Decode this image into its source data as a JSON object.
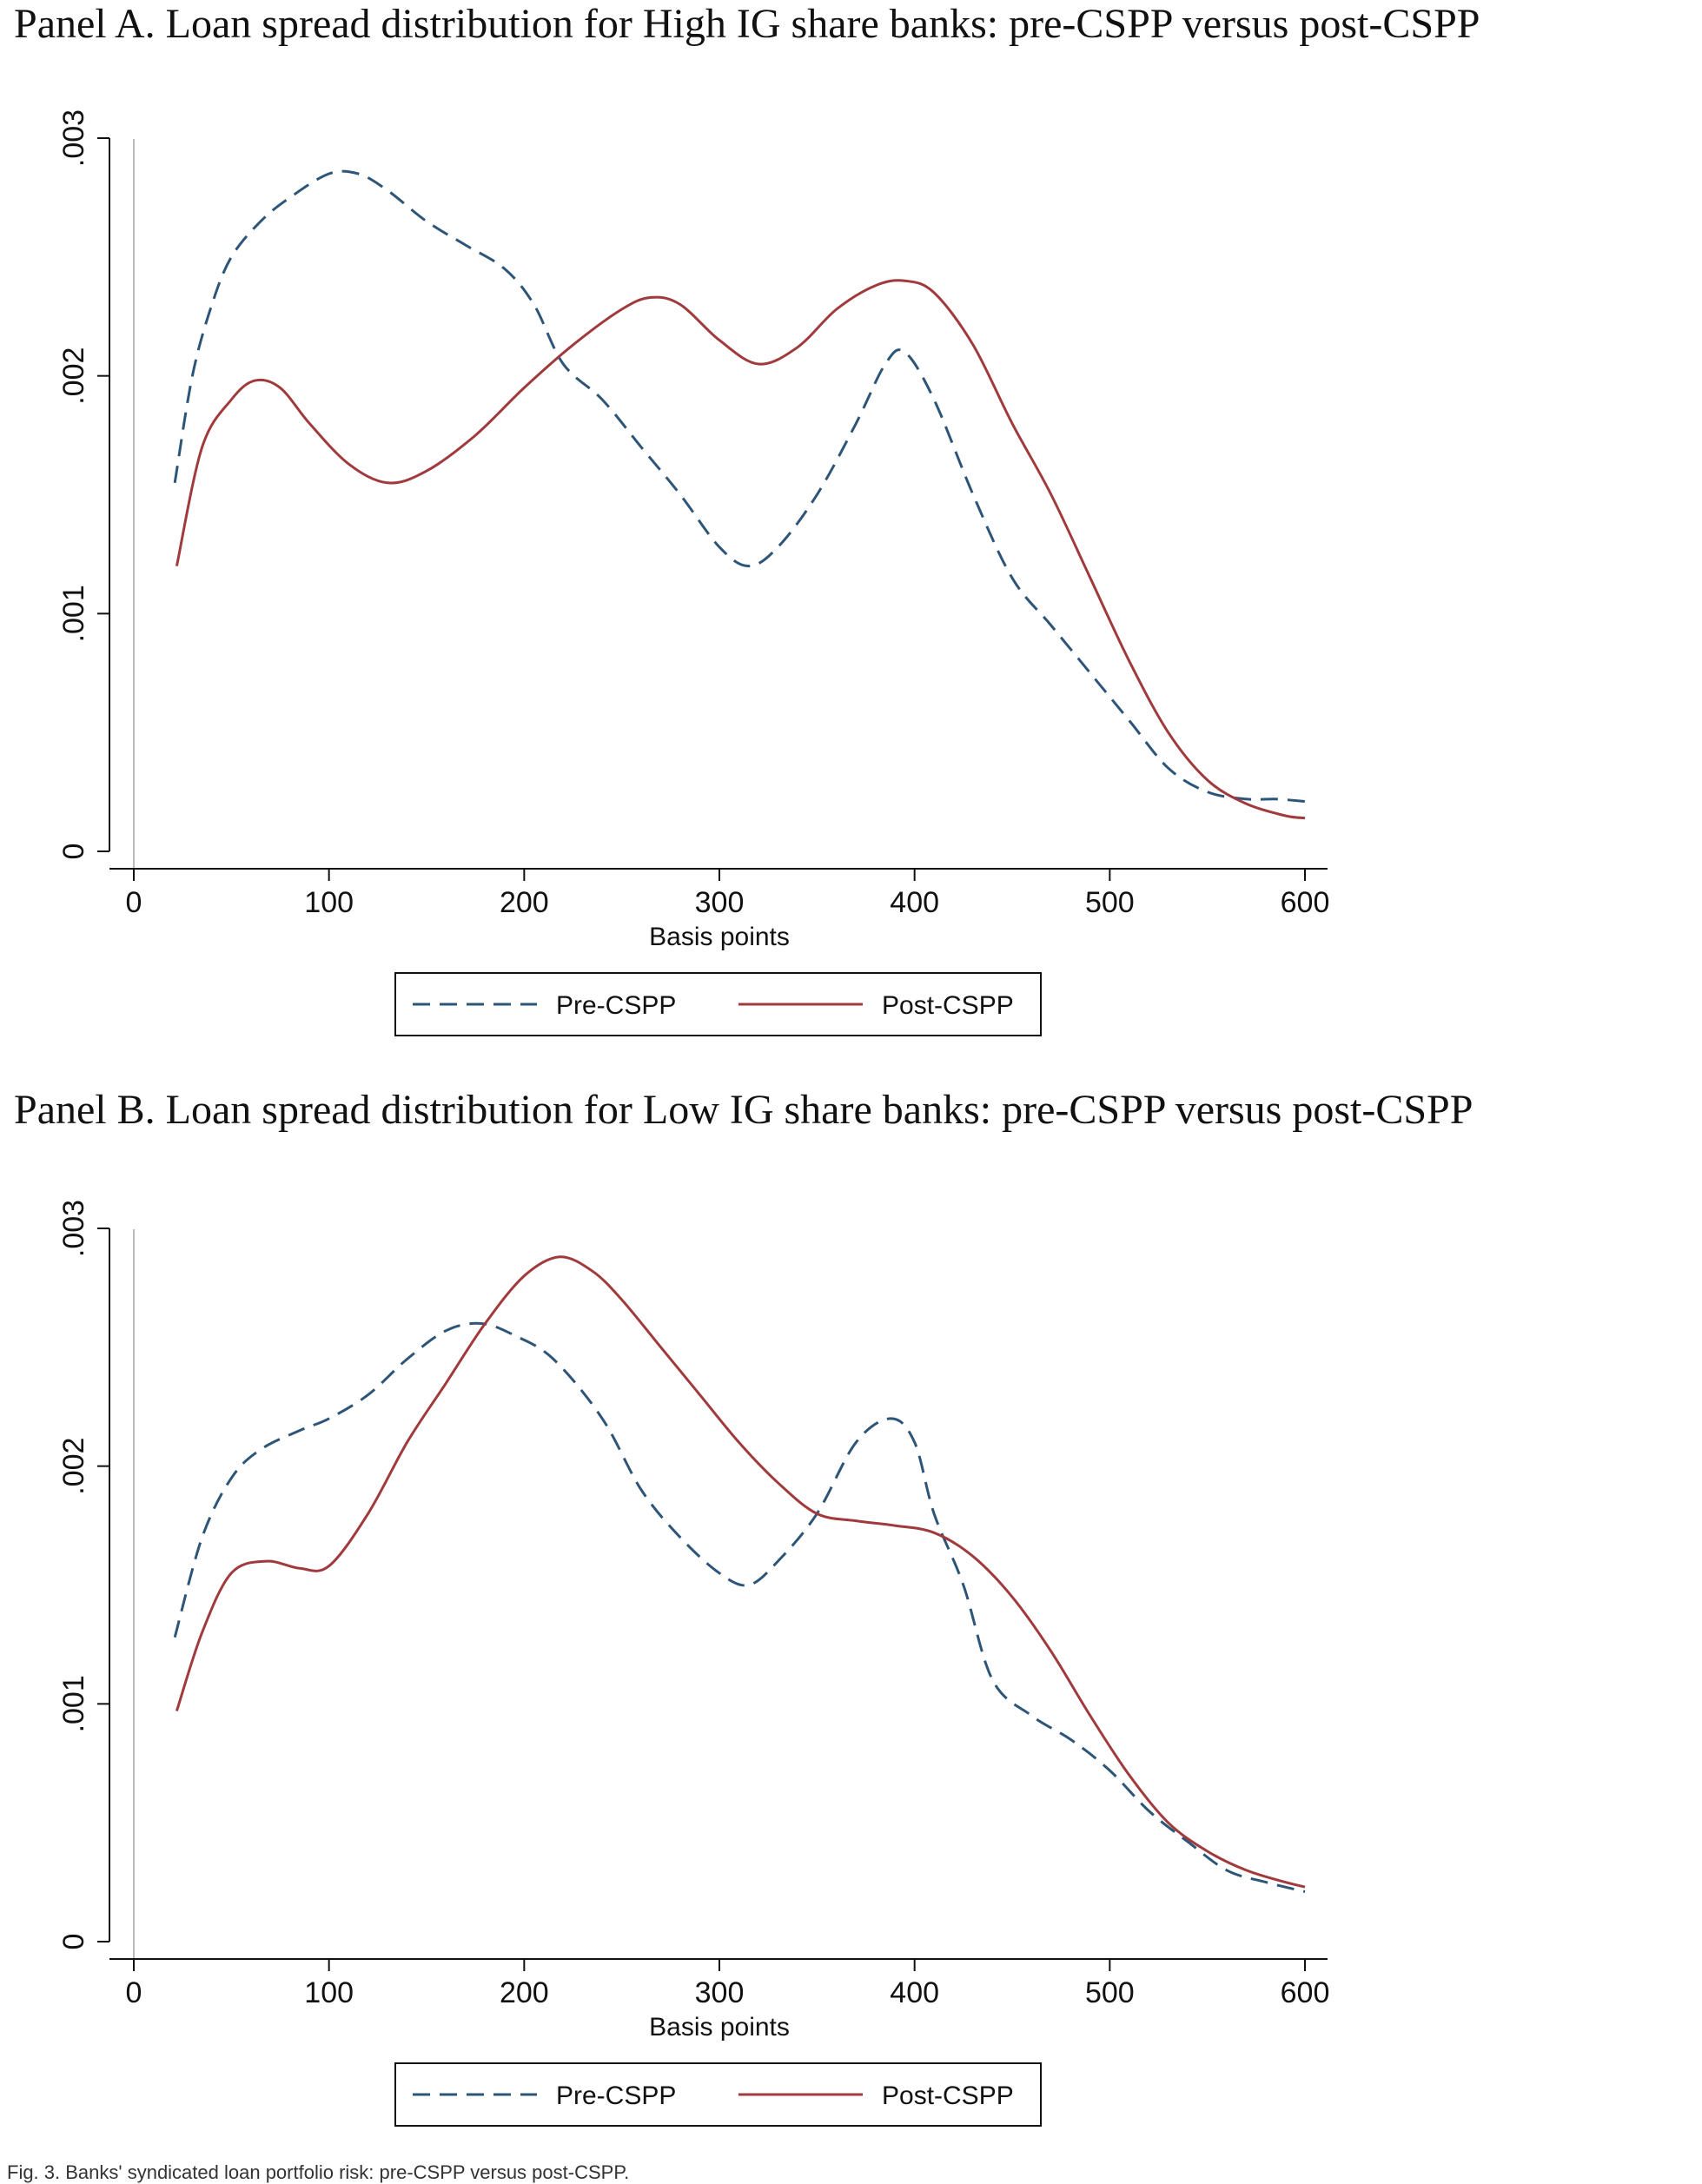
{
  "panels": [
    {
      "title": "Panel A. Loan spread distribution for High IG share banks: pre-CSPP versus post-CSPP"
    },
    {
      "title": "Panel B. Loan spread distribution for Low IG share banks: pre-CSPP versus post-CSPP"
    }
  ],
  "caption": "Fig. 3. Banks' syndicated loan portfolio risk: pre-CSPP versus post-CSPP.",
  "colors": {
    "pre": "#2d5577",
    "post": "#a03a3c",
    "axis": "#111111",
    "zero_line": "#bbbbbb"
  },
  "chart_data": [
    {
      "type": "line",
      "title": "",
      "xlabel": "Basis points",
      "ylabel": "",
      "xlim": [
        0,
        600
      ],
      "ylim": [
        0,
        0.003
      ],
      "x_ticks": [
        0,
        100,
        200,
        300,
        400,
        500,
        600
      ],
      "x_tick_labels": [
        "0",
        "100",
        "200",
        "300",
        "400",
        "500",
        "600"
      ],
      "y_ticks": [
        0,
        0.001,
        0.002,
        0.003
      ],
      "y_tick_labels": [
        "0",
        ".001",
        ".002",
        ".003"
      ],
      "grid": false,
      "legend": "bottom",
      "series": [
        {
          "name": "Pre-CSPP",
          "style": "dashed",
          "points": [
            [
              21,
              0.00155
            ],
            [
              30,
              0.002
            ],
            [
              40,
              0.0023
            ],
            [
              50,
              0.0025
            ],
            [
              65,
              0.00265
            ],
            [
              80,
              0.00275
            ],
            [
              100,
              0.00285
            ],
            [
              115,
              0.00285
            ],
            [
              130,
              0.00278
            ],
            [
              150,
              0.00265
            ],
            [
              170,
              0.00255
            ],
            [
              190,
              0.00245
            ],
            [
              205,
              0.0023
            ],
            [
              220,
              0.00205
            ],
            [
              240,
              0.0019
            ],
            [
              260,
              0.0017
            ],
            [
              280,
              0.0015
            ],
            [
              300,
              0.00128
            ],
            [
              315,
              0.0012
            ],
            [
              330,
              0.00128
            ],
            [
              350,
              0.0015
            ],
            [
              370,
              0.0018
            ],
            [
              385,
              0.00205
            ],
            [
              395,
              0.0021
            ],
            [
              410,
              0.0019
            ],
            [
              430,
              0.0015
            ],
            [
              450,
              0.00115
            ],
            [
              470,
              0.00095
            ],
            [
              490,
              0.00075
            ],
            [
              510,
              0.00055
            ],
            [
              530,
              0.00035
            ],
            [
              550,
              0.00025
            ],
            [
              570,
              0.00022
            ],
            [
              585,
              0.00022
            ],
            [
              600,
              0.00021
            ]
          ]
        },
        {
          "name": "Post-CSPP",
          "style": "solid",
          "points": [
            [
              22,
              0.0012
            ],
            [
              35,
              0.0017
            ],
            [
              50,
              0.0019
            ],
            [
              62,
              0.00198
            ],
            [
              75,
              0.00195
            ],
            [
              90,
              0.0018
            ],
            [
              110,
              0.00163
            ],
            [
              130,
              0.00155
            ],
            [
              150,
              0.0016
            ],
            [
              175,
              0.00175
            ],
            [
              200,
              0.00195
            ],
            [
              225,
              0.00213
            ],
            [
              250,
              0.00228
            ],
            [
              265,
              0.00233
            ],
            [
              280,
              0.0023
            ],
            [
              300,
              0.00215
            ],
            [
              320,
              0.00205
            ],
            [
              340,
              0.00212
            ],
            [
              360,
              0.00228
            ],
            [
              380,
              0.00238
            ],
            [
              395,
              0.0024
            ],
            [
              410,
              0.00235
            ],
            [
              430,
              0.00213
            ],
            [
              450,
              0.0018
            ],
            [
              470,
              0.0015
            ],
            [
              490,
              0.00115
            ],
            [
              510,
              0.0008
            ],
            [
              530,
              0.0005
            ],
            [
              550,
              0.0003
            ],
            [
              570,
              0.0002
            ],
            [
              590,
              0.00015
            ],
            [
              600,
              0.00014
            ]
          ]
        }
      ]
    },
    {
      "type": "line",
      "title": "",
      "xlabel": "Basis points",
      "ylabel": "",
      "xlim": [
        0,
        600
      ],
      "ylim": [
        0,
        0.003
      ],
      "x_ticks": [
        0,
        100,
        200,
        300,
        400,
        500,
        600
      ],
      "x_tick_labels": [
        "0",
        "100",
        "200",
        "300",
        "400",
        "500",
        "600"
      ],
      "y_ticks": [
        0,
        0.001,
        0.002,
        0.003
      ],
      "y_tick_labels": [
        "0",
        ".001",
        ".002",
        ".003"
      ],
      "grid": false,
      "legend": "bottom",
      "series": [
        {
          "name": "Pre-CSPP",
          "style": "dashed",
          "points": [
            [
              21,
              0.00128
            ],
            [
              35,
              0.0017
            ],
            [
              50,
              0.00195
            ],
            [
              65,
              0.00207
            ],
            [
              85,
              0.00215
            ],
            [
              100,
              0.0022
            ],
            [
              120,
              0.0023
            ],
            [
              140,
              0.00245
            ],
            [
              160,
              0.00257
            ],
            [
              178,
              0.0026
            ],
            [
              195,
              0.00255
            ],
            [
              215,
              0.00245
            ],
            [
              240,
              0.0022
            ],
            [
              260,
              0.0019
            ],
            [
              280,
              0.0017
            ],
            [
              300,
              0.00155
            ],
            [
              315,
              0.0015
            ],
            [
              330,
              0.0016
            ],
            [
              350,
              0.0018
            ],
            [
              370,
              0.0021
            ],
            [
              388,
              0.0022
            ],
            [
              400,
              0.0021
            ],
            [
              410,
              0.0018
            ],
            [
              425,
              0.0015
            ],
            [
              440,
              0.0011
            ],
            [
              460,
              0.00095
            ],
            [
              480,
              0.00085
            ],
            [
              500,
              0.00072
            ],
            [
              520,
              0.00055
            ],
            [
              540,
              0.00042
            ],
            [
              560,
              0.0003
            ],
            [
              580,
              0.00025
            ],
            [
              600,
              0.00021
            ]
          ]
        },
        {
          "name": "Post-CSPP",
          "style": "solid",
          "points": [
            [
              22,
              0.00097
            ],
            [
              35,
              0.0013
            ],
            [
              50,
              0.00155
            ],
            [
              68,
              0.0016
            ],
            [
              85,
              0.00157
            ],
            [
              100,
              0.00158
            ],
            [
              120,
              0.0018
            ],
            [
              140,
              0.0021
            ],
            [
              160,
              0.00235
            ],
            [
              180,
              0.0026
            ],
            [
              200,
              0.0028
            ],
            [
              218,
              0.00288
            ],
            [
              235,
              0.00282
            ],
            [
              250,
              0.0027
            ],
            [
              270,
              0.0025
            ],
            [
              290,
              0.0023
            ],
            [
              310,
              0.0021
            ],
            [
              330,
              0.00193
            ],
            [
              350,
              0.0018
            ],
            [
              370,
              0.00177
            ],
            [
              390,
              0.00175
            ],
            [
              410,
              0.00172
            ],
            [
              430,
              0.00162
            ],
            [
              450,
              0.00145
            ],
            [
              470,
              0.00122
            ],
            [
              490,
              0.00095
            ],
            [
              510,
              0.0007
            ],
            [
              530,
              0.0005
            ],
            [
              550,
              0.00038
            ],
            [
              570,
              0.0003
            ],
            [
              590,
              0.00025
            ],
            [
              600,
              0.00023
            ]
          ]
        }
      ]
    }
  ]
}
